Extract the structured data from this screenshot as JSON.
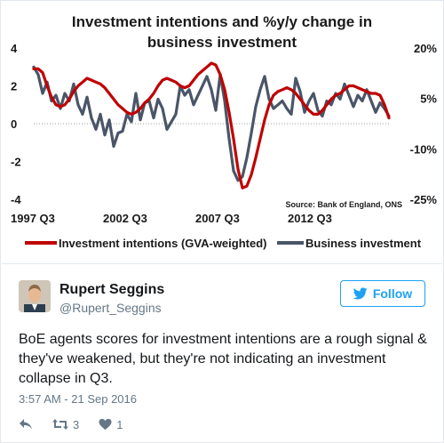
{
  "chart_data": {
    "type": "line",
    "title": "Investment intentions and %y/y change in business investment",
    "title_lines": [
      "Investment intentions and %y/y change in",
      "business investment"
    ],
    "source": "Source: Bank of England, ONS",
    "x_tick_labels": [
      "1997 Q3",
      "2002 Q3",
      "2007 Q3",
      "2012 Q3"
    ],
    "y_left_ticks": [
      "4",
      "2",
      "0",
      "-2",
      "-4"
    ],
    "y_right_ticks": [
      "20%",
      "5%",
      "-10%",
      "-25%"
    ],
    "ylim_left": [
      -4,
      4
    ],
    "ylim_right": [
      -25,
      20
    ],
    "legend_placement": "bottom",
    "series": [
      {
        "name": "Investment intentions (GVA-weighted)",
        "axis": "left",
        "color": "#c00000",
        "values": [
          2.9,
          2.9,
          2.7,
          2.0,
          1.4,
          1.0,
          0.9,
          1.0,
          1.3,
          1.7,
          2.0,
          2.2,
          2.4,
          2.3,
          2.2,
          2.1,
          1.9,
          1.6,
          1.3,
          1.0,
          0.8,
          0.6,
          0.5,
          0.6,
          0.8,
          1.1,
          1.3,
          1.6,
          2.0,
          2.3,
          2.4,
          2.3,
          2.2,
          2.0,
          1.9,
          2.0,
          2.3,
          2.6,
          2.8,
          3.0,
          3.2,
          3.1,
          2.6,
          1.8,
          0.6,
          -0.8,
          -2.4,
          -3.4,
          -3.3,
          -2.7,
          -1.8,
          -0.8,
          0.2,
          1.0,
          1.5,
          1.7,
          1.8,
          1.9,
          1.8,
          1.6,
          1.3,
          1.0,
          0.7,
          0.5,
          0.5,
          0.7,
          1.0,
          1.3,
          1.5,
          1.6,
          1.8,
          2.0,
          2.0,
          1.9,
          1.8,
          1.7,
          1.6,
          1.6,
          1.5,
          1.0,
          0.3
        ]
      },
      {
        "name": "Business investment",
        "axis": "left",
        "color": "#4a5568",
        "values": [
          3.0,
          2.6,
          1.6,
          2.2,
          1.2,
          1.5,
          0.8,
          1.6,
          1.2,
          2.1,
          1.0,
          0.5,
          1.4,
          0.3,
          -0.3,
          0.5,
          -0.6,
          0.2,
          -1.2,
          -0.5,
          -0.4,
          0.5,
          0.1,
          1.6,
          0.2,
          1.1,
          1.2,
          0.3,
          1.3,
          0.8,
          -0.3,
          0.1,
          0.5,
          2.0,
          1.5,
          1.8,
          1.0,
          1.5,
          2.0,
          2.5,
          1.8,
          0.7,
          2.6,
          1.2,
          -0.8,
          -2.5,
          -3.0,
          -2.8,
          -1.8,
          -0.5,
          0.9,
          1.8,
          2.5,
          1.3,
          0.8,
          1.0,
          1.2,
          0.8,
          0.5,
          2.4,
          1.7,
          0.6,
          1.2,
          1.6,
          0.7,
          0.4,
          1.2,
          1.0,
          1.6,
          1.3,
          2.1,
          1.5,
          0.9,
          1.5,
          1.2,
          1.8,
          1.2,
          0.6,
          1.1,
          0.8,
          0.4
        ]
      }
    ]
  },
  "tweet": {
    "user_name": "Rupert Seggins",
    "user_handle": "@Rupert_Seggins",
    "follow_label": "Follow",
    "text": "BoE agents scores for investment intentions are a rough signal & they've weakened, but they're not indicating an investment collapse in Q3.",
    "timestamp": "3:57 AM - 21 Sep 2016",
    "retweet_count": "3",
    "like_count": "1",
    "icons": {
      "reply": "reply-icon",
      "retweet": "retweet-icon",
      "like": "heart-icon",
      "follow": "twitter-bird-icon"
    },
    "colors": {
      "accent": "#1da1f2",
      "muted": "#657786"
    }
  }
}
